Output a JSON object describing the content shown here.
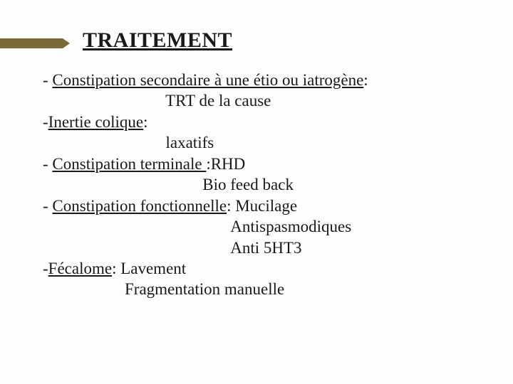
{
  "accent_color": "#7a6a3a",
  "title": "TRAITEMENT",
  "lines": [
    {
      "dash": "- ",
      "u": "Constipation secondaire à une étio ou iatrogène",
      "after": ":"
    },
    {
      "indent": "                              ",
      "plain": "TRT de la cause"
    },
    {
      "dash": "-",
      "u": "Inertie colique",
      "after": ":"
    },
    {
      "indent": "                              ",
      "plain": "laxatifs"
    },
    {
      "dash": "- ",
      "u": "Constipation terminale ",
      "after": ":RHD"
    },
    {
      "indent": "                                       ",
      "plain": "Bio feed back"
    },
    {
      "dash": "- ",
      "u": "Constipation fonctionnelle",
      "after": ": Mucilage"
    },
    {
      "indent": "                                              ",
      "plain": "Antispasmodiques"
    },
    {
      "indent": "                                              ",
      "plain": "Anti 5HT3"
    },
    {
      "dash": "-",
      "u": "Fécalome",
      "after": ": Lavement"
    },
    {
      "indent": "                    ",
      "plain": "Fragmentation manuelle"
    }
  ]
}
